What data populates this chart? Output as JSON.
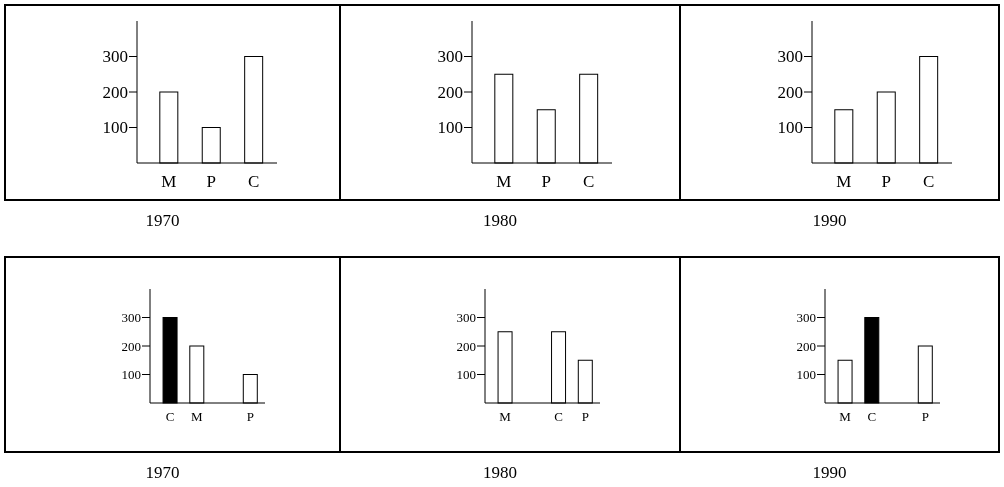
{
  "chart_data": [
    {
      "type": "bar",
      "title": "1970",
      "categories": [
        "M",
        "P",
        "C"
      ],
      "values": [
        200,
        100,
        300
      ],
      "color": "#ffffff",
      "ylim": [
        0,
        400
      ],
      "yticks": [
        100,
        200,
        300
      ],
      "grid": false
    },
    {
      "type": "bar",
      "title": "1980",
      "categories": [
        "M",
        "P",
        "C"
      ],
      "values": [
        250,
        150,
        250
      ],
      "color": "#ffffff",
      "ylim": [
        0,
        400
      ],
      "yticks": [
        100,
        200,
        300
      ],
      "grid": false
    },
    {
      "type": "bar",
      "title": "1990",
      "categories": [
        "M",
        "P",
        "C"
      ],
      "values": [
        150,
        200,
        300
      ],
      "color": "#ffffff",
      "ylim": [
        0,
        400
      ],
      "yticks": [
        100,
        200,
        300
      ],
      "grid": false
    },
    {
      "type": "bar",
      "title": "1970",
      "categories": [
        "C",
        "M",
        null,
        "P"
      ],
      "values": [
        300,
        200,
        null,
        100
      ],
      "colors": [
        "#000000",
        "#ffffff",
        null,
        "#ffffff"
      ],
      "ylim": [
        0,
        400
      ],
      "yticks": [
        100,
        200,
        300
      ],
      "grid": false
    },
    {
      "type": "bar",
      "title": "1980",
      "categories": [
        "M",
        null,
        "C",
        "P"
      ],
      "values": [
        250,
        null,
        250,
        150
      ],
      "colors": [
        "#ffffff",
        null,
        "#ffffff",
        "#ffffff"
      ],
      "ylim": [
        0,
        400
      ],
      "yticks": [
        100,
        200,
        300
      ],
      "grid": false
    },
    {
      "type": "bar",
      "title": "1990",
      "categories": [
        "M",
        "C",
        null,
        "P"
      ],
      "values": [
        150,
        300,
        null,
        200
      ],
      "colors": [
        "#ffffff",
        "#000000",
        null,
        "#ffffff"
      ],
      "ylim": [
        0,
        400
      ],
      "yticks": [
        100,
        200,
        300
      ],
      "grid": false
    }
  ]
}
